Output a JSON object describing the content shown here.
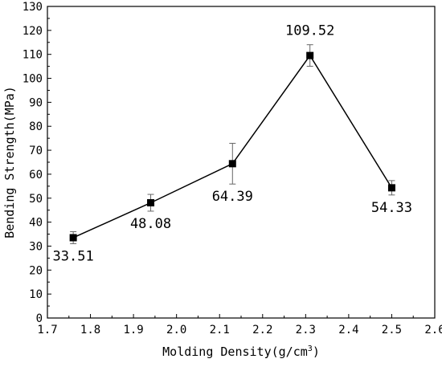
{
  "chart_data": {
    "type": "line",
    "title": "",
    "xlabel": "Molding Density(g/cm",
    "xlabel_superscript": "3",
    "xlabel_suffix": ")",
    "ylabel": "Bending Strength(MPa)",
    "xlim": [
      1.7,
      2.6
    ],
    "ylim": [
      0,
      130
    ],
    "x_ticks": [
      1.7,
      1.8,
      1.9,
      2.0,
      2.1,
      2.2,
      2.3,
      2.4,
      2.5,
      2.6
    ],
    "x_tick_labels": [
      "1.7",
      "1.8",
      "1.9",
      "2.0",
      "2.1",
      "2.2",
      "2.3",
      "2.4",
      "2.5",
      "2.6"
    ],
    "y_ticks": [
      0,
      10,
      20,
      30,
      40,
      50,
      60,
      70,
      80,
      90,
      100,
      110,
      120,
      130
    ],
    "y_tick_labels": [
      "0",
      "10",
      "20",
      "30",
      "40",
      "50",
      "60",
      "70",
      "80",
      "90",
      "100",
      "110",
      "120",
      "130"
    ],
    "grid": false,
    "legend": "none",
    "series": [
      {
        "marker": "square",
        "color": "#000000",
        "x": [
          1.76,
          1.94,
          2.13,
          2.31,
          2.5
        ],
        "y": [
          33.51,
          48.08,
          64.39,
          109.52,
          54.33
        ],
        "error": [
          2.5,
          3.5,
          8.5,
          4.5,
          3.0
        ],
        "data_labels": [
          "33.51",
          "48.08",
          "64.39",
          "109.52",
          "54.33"
        ],
        "label_position": [
          "below",
          "below",
          "below",
          "above",
          "below"
        ]
      }
    ]
  }
}
